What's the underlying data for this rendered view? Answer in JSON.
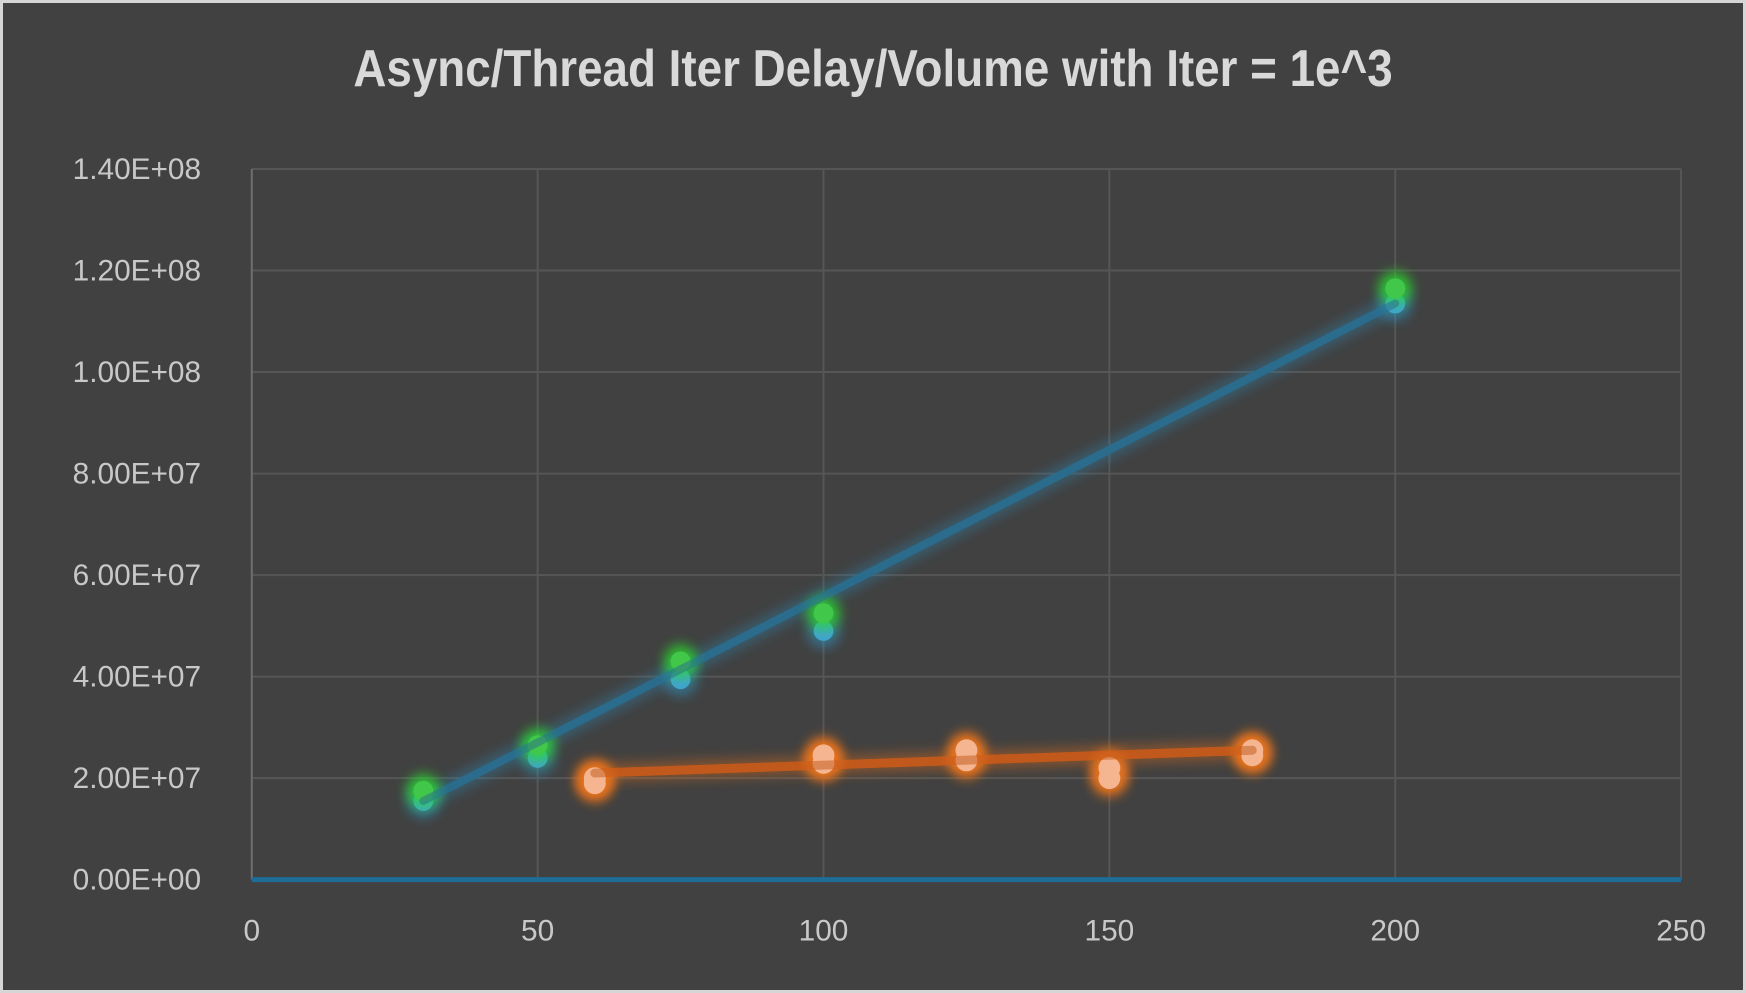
{
  "frame": {
    "background": "#414141",
    "border_color": "#d6d6d6"
  },
  "title": {
    "text": "Async/Thread Iter Delay/Volume with Iter = 1e^3",
    "color": "#d9d9d9"
  },
  "axis_style": {
    "tick_label_color": "#c8c8c8",
    "gridline_color": "#565656",
    "y_axis_line_color": "#6f6f6f",
    "zero_line_color": "#1d6d98"
  },
  "chart_data": {
    "type": "scatter",
    "title": "Async/Thread Iter Delay/Volume with Iter = 1e^3",
    "xlabel": "",
    "ylabel": "",
    "xlim": [
      0,
      250
    ],
    "ylim": [
      0,
      140000000
    ],
    "grid": true,
    "legend": "none",
    "x_ticks": [
      0,
      50,
      100,
      150,
      200,
      250
    ],
    "x_tick_labels": [
      "0",
      "50",
      "100",
      "150",
      "200",
      "250"
    ],
    "y_ticks": [
      0,
      20000000,
      40000000,
      60000000,
      80000000,
      100000000,
      120000000,
      140000000
    ],
    "y_tick_labels": [
      "0.00E+00",
      "2.00E+07",
      "4.00E+07",
      "6.00E+07",
      "8.00E+07",
      "1.00E+08",
      "1.20E+08",
      "1.40E+08"
    ],
    "series": [
      {
        "name": "blue-series",
        "marker_color": "#41a3d2",
        "glow_color": "#2f9fd4",
        "glow_opacity": 0.5,
        "marker_radius": 10,
        "points": [
          [
            30,
            15500000
          ],
          [
            50,
            24000000
          ],
          [
            75,
            39500000
          ],
          [
            100,
            49000000
          ],
          [
            200,
            113500000
          ]
        ],
        "trendline": {
          "color": "#2b6b8c",
          "glow_color": "#2e7fa6",
          "width": 8,
          "from": [
            30,
            15500000
          ],
          "to": [
            200,
            113500000
          ]
        }
      },
      {
        "name": "green-series",
        "marker_color": "#41c84b",
        "glow_color": "#2bd82b",
        "glow_opacity": 0.8,
        "marker_radius": 10,
        "points": [
          [
            30,
            17500000
          ],
          [
            50,
            26500000
          ],
          [
            75,
            43000000
          ],
          [
            100,
            52500000
          ],
          [
            200,
            116500000
          ]
        ]
      },
      {
        "name": "orange-series",
        "marker_color": "#f5b590",
        "glow_color": "#e7721b",
        "glow_opacity": 1.0,
        "marker_radius": 11,
        "points": [
          [
            60,
            19000000
          ],
          [
            60,
            20000000
          ],
          [
            100,
            23000000
          ],
          [
            100,
            24500000
          ],
          [
            125,
            23500000
          ],
          [
            125,
            25500000
          ],
          [
            150,
            20000000
          ],
          [
            150,
            22000000
          ],
          [
            175,
            24500000
          ],
          [
            175,
            25500000
          ]
        ],
        "trendline": {
          "color": "#c2591c",
          "glow_color": "#d2691e",
          "width": 9,
          "from": [
            60,
            21000000
          ],
          "to": [
            175,
            25500000
          ]
        }
      }
    ],
    "zero_axis": {
      "color": "#1d6d98",
      "width": 5
    }
  }
}
